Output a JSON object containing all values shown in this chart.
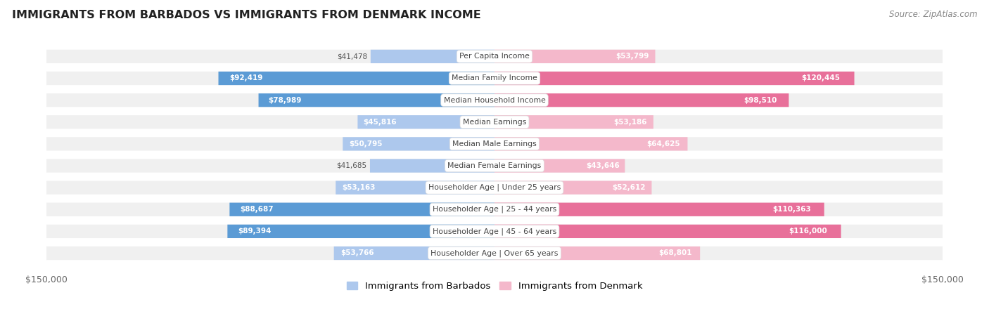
{
  "title": "IMMIGRANTS FROM BARBADOS VS IMMIGRANTS FROM DENMARK INCOME",
  "source": "Source: ZipAtlas.com",
  "categories": [
    "Per Capita Income",
    "Median Family Income",
    "Median Household Income",
    "Median Earnings",
    "Median Male Earnings",
    "Median Female Earnings",
    "Householder Age | Under 25 years",
    "Householder Age | 25 - 44 years",
    "Householder Age | 45 - 64 years",
    "Householder Age | Over 65 years"
  ],
  "barbados_values": [
    41478,
    92419,
    78989,
    45816,
    50795,
    41685,
    53163,
    88687,
    89394,
    53766
  ],
  "denmark_values": [
    53799,
    120445,
    98510,
    53186,
    64625,
    43646,
    52612,
    110363,
    116000,
    68801
  ],
  "barbados_labels": [
    "$41,478",
    "$92,419",
    "$78,989",
    "$45,816",
    "$50,795",
    "$41,685",
    "$53,163",
    "$88,687",
    "$89,394",
    "$53,766"
  ],
  "denmark_labels": [
    "$53,799",
    "$120,445",
    "$98,510",
    "$53,186",
    "$64,625",
    "$43,646",
    "$52,612",
    "$110,363",
    "$116,000",
    "$68,801"
  ],
  "max_value": 150000,
  "bar_color_barbados_light": "#adc8ed",
  "bar_color_barbados_bold": "#5b9bd5",
  "bar_color_denmark_light": "#f4b8cb",
  "bar_color_denmark_bold": "#e8709a",
  "row_bg": "#f0f0f0",
  "background_color": "#ffffff",
  "legend_barbados": "Immigrants from Barbados",
  "legend_denmark": "Immigrants from Denmark",
  "bold_threshold": 0.52
}
